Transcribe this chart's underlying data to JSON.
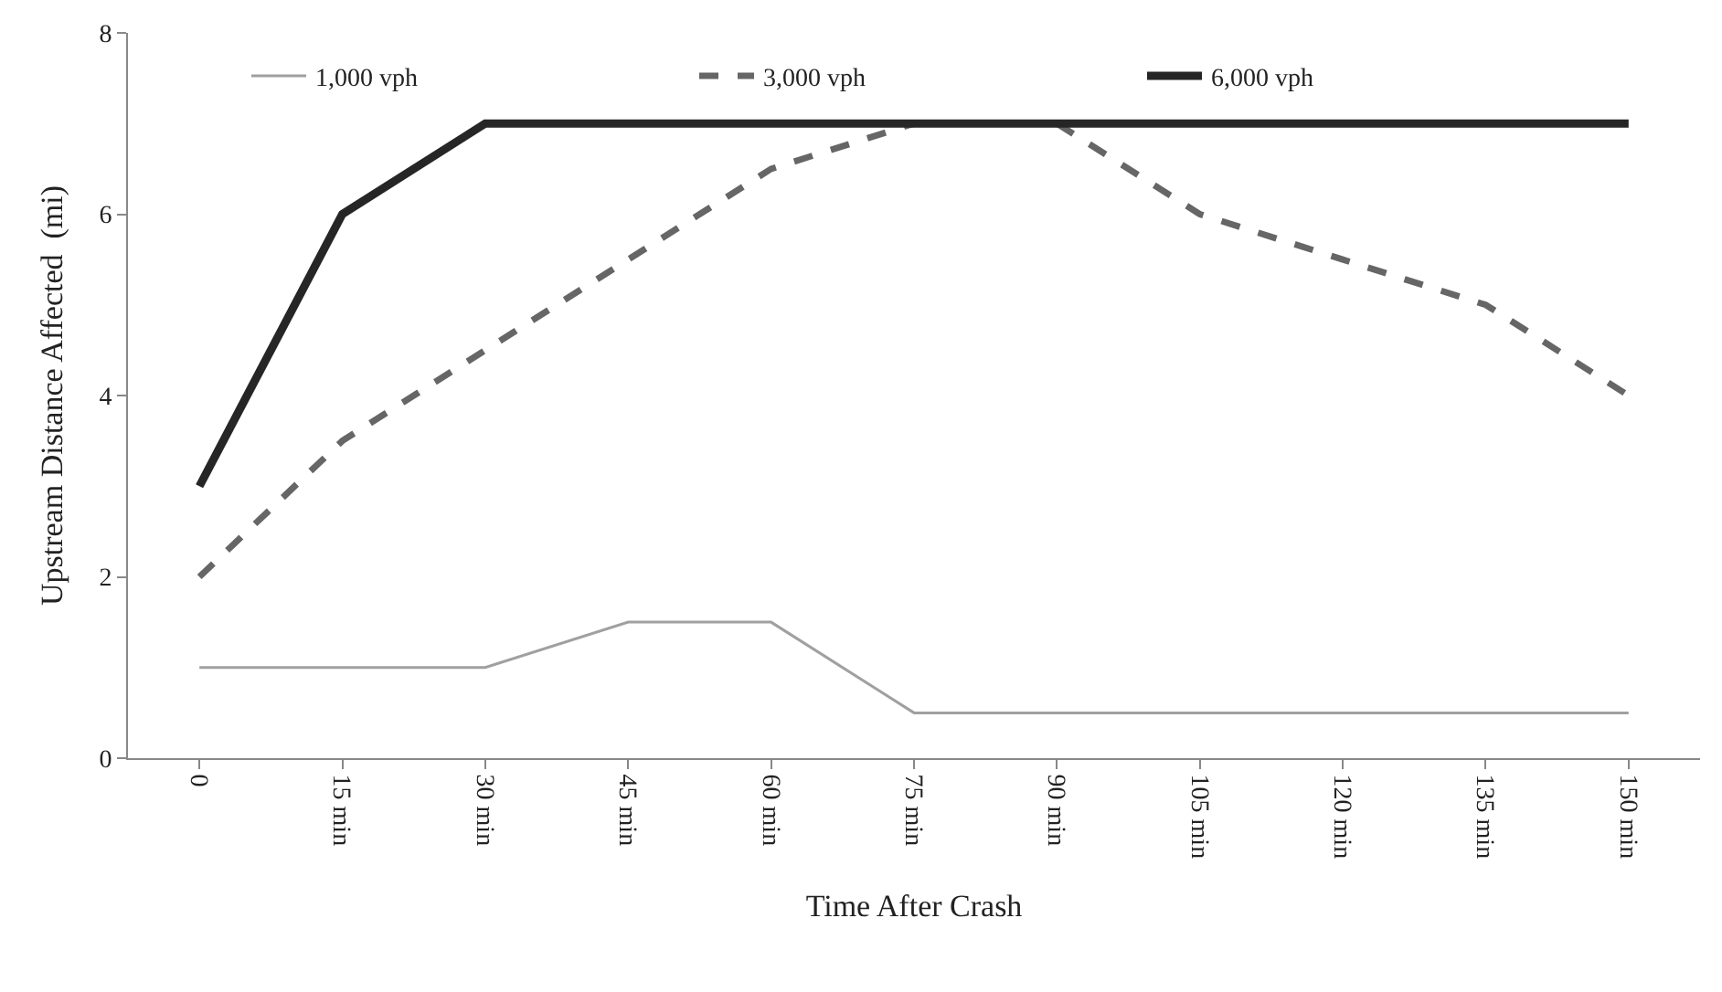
{
  "chart_data": {
    "type": "line",
    "xlabel": "Time After Crash",
    "ylabel": "Upstream Distance Affected  (mi)",
    "categories": [
      "0",
      "15 min",
      "30 min",
      "45 min",
      "60 min",
      "75 min",
      "90 min",
      "105 min",
      "120 min",
      "135 min",
      "150 min"
    ],
    "ylim": [
      0,
      8
    ],
    "yticks": [
      0,
      2,
      4,
      6,
      8
    ],
    "legend": "top",
    "marker": "none",
    "series": [
      {
        "name": "1,000 vph",
        "color": "#a0a0a0",
        "line_style": "solid",
        "values": [
          1,
          1,
          1,
          1.5,
          1.5,
          0.5,
          0.5,
          0.5,
          0.5,
          0.5,
          0.5
        ]
      },
      {
        "name": "3,000 vph",
        "color": "#666666",
        "line_style": "dashed",
        "values": [
          2,
          3.5,
          4.5,
          5.5,
          6.5,
          7,
          7,
          6,
          5.5,
          5,
          4
        ]
      },
      {
        "name": "6,000 vph",
        "color": "#262626",
        "line_style": "solid",
        "values": [
          3,
          6,
          7,
          7,
          7,
          7,
          7,
          7,
          7,
          7,
          7
        ]
      }
    ]
  }
}
